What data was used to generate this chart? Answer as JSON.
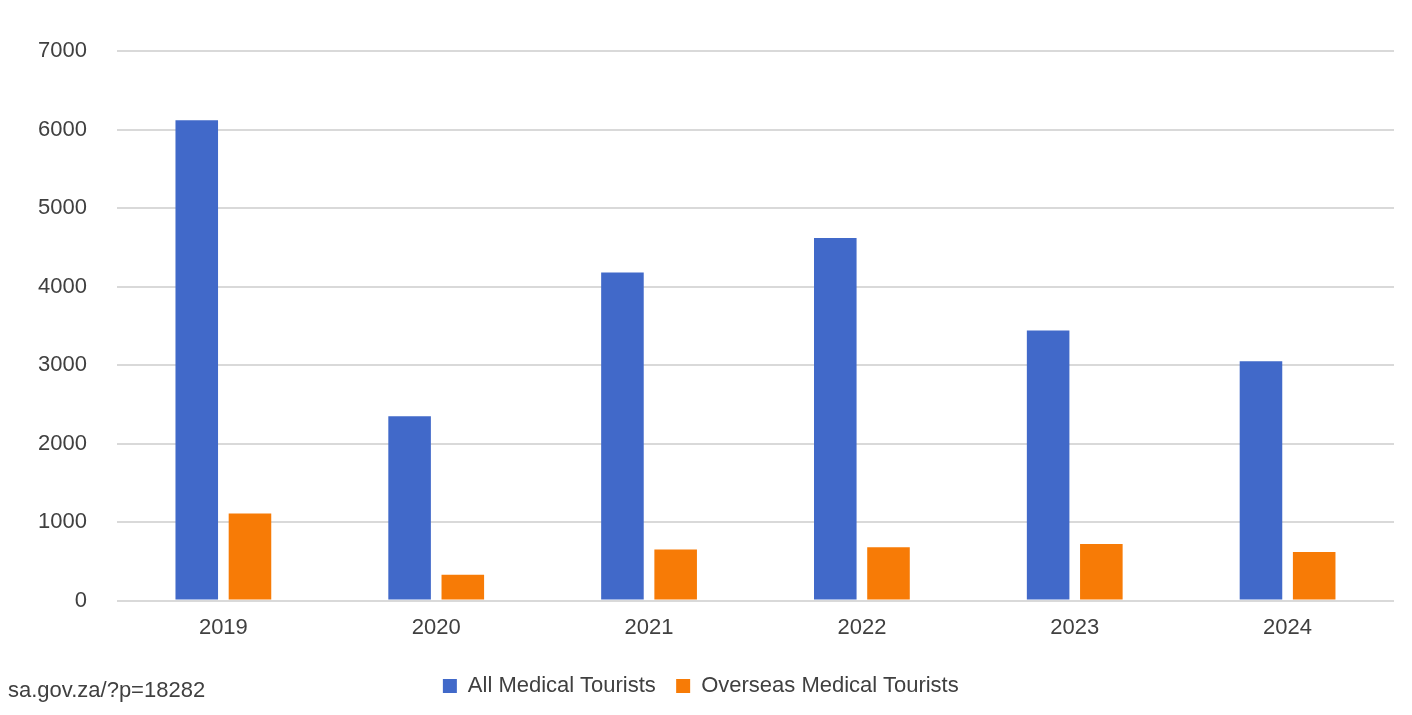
{
  "chart_data": {
    "type": "bar",
    "categories": [
      "2019",
      "2020",
      "2021",
      "2022",
      "2023",
      "2024"
    ],
    "series": [
      {
        "name": "All Medical Tourists",
        "color": "#4169c9",
        "values": [
          6120,
          2350,
          4180,
          4620,
          3440,
          3050
        ]
      },
      {
        "name": "Overseas Medical Tourists",
        "color": "#f77b06",
        "values": [
          1110,
          330,
          650,
          680,
          720,
          620
        ]
      }
    ],
    "ylim": [
      0,
      7000
    ],
    "yticks": [
      0,
      1000,
      2000,
      3000,
      4000,
      5000,
      6000,
      7000
    ],
    "grid": "y",
    "legend": "bottom",
    "annotations": [
      "sa.gov.za/?p=18282"
    ]
  }
}
